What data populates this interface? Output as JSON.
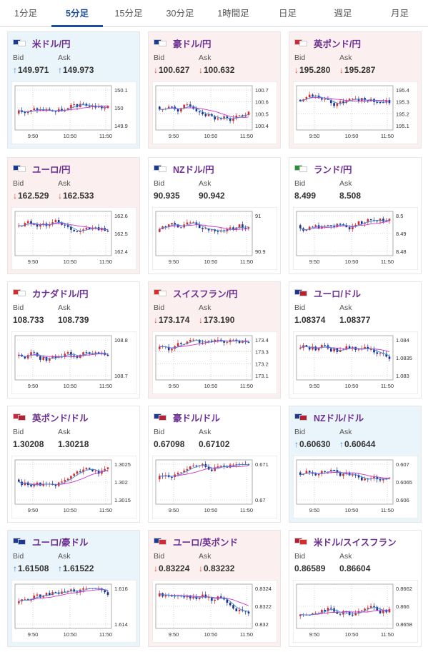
{
  "tabs": [
    {
      "label": "1分足"
    },
    {
      "label": "5分足",
      "active": true
    },
    {
      "label": "15分足"
    },
    {
      "label": "30分足"
    },
    {
      "label": "1時間足"
    },
    {
      "label": "日足"
    },
    {
      "label": "週足"
    },
    {
      "label": "月足"
    }
  ],
  "labels": {
    "bid": "Bid",
    "ask": "Ask"
  },
  "colors": {
    "up_arrow": "#2f7fd1",
    "down_arrow": "#d9463f",
    "ma": "#cc33cc",
    "ma2": "#3a8fdc",
    "bull": "#d62b2b",
    "bear": "#1b2f8f"
  },
  "x_ticks": [
    "9:50",
    "10:50",
    "11:50"
  ],
  "cards": [
    {
      "pair": "米ドル/円",
      "flags": [
        "#1a3a8f",
        "#ffffff"
      ],
      "dir": "up",
      "bid": "149.971",
      "ask": "149.973",
      "y_ticks": [
        "150.1",
        "150",
        "149.9"
      ],
      "seed": 3
    },
    {
      "pair": "豪ドル/円",
      "flags": [
        "#1a3a8f",
        "#ffffff"
      ],
      "dir": "down",
      "bid": "100.627",
      "ask": "100.632",
      "y_ticks": [
        "100.7",
        "100.6",
        "100.5",
        "100.4"
      ],
      "seed": 7
    },
    {
      "pair": "英ポンド/円",
      "flags": [
        "#cf2a3a",
        "#ffffff"
      ],
      "dir": "down",
      "bid": "195.280",
      "ask": "195.287",
      "y_ticks": [
        "195.4",
        "195.3",
        "195.2",
        "195.1"
      ],
      "seed": 11
    },
    {
      "pair": "ユーロ/円",
      "flags": [
        "#1a3a8f",
        "#ffffff"
      ],
      "dir": "down",
      "bid": "162.529",
      "ask": "162.533",
      "y_ticks": [
        "162.6",
        "162.5",
        "162.4"
      ],
      "seed": 5
    },
    {
      "pair": "NZドル/円",
      "flags": [
        "#1a3a8f",
        "#ffffff"
      ],
      "dir": "flat",
      "bid": "90.935",
      "ask": "90.942",
      "y_ticks": [
        "91",
        "90.9"
      ],
      "seed": 13
    },
    {
      "pair": "ランド/円",
      "flags": [
        "#2a8f3a",
        "#ffffff"
      ],
      "dir": "flat",
      "bid": "8.499",
      "ask": "8.508",
      "y_ticks": [
        "8.5",
        "8.49",
        "8.48"
      ],
      "seed": 17
    },
    {
      "pair": "カナダドル/円",
      "flags": [
        "#d62b2b",
        "#ffffff"
      ],
      "dir": "flat",
      "bid": "108.733",
      "ask": "108.739",
      "y_ticks": [
        "108.8",
        "108.7"
      ],
      "seed": 19
    },
    {
      "pair": "スイスフラン/円",
      "flags": [
        "#d62b2b",
        "#ffffff"
      ],
      "dir": "down",
      "bid": "173.174",
      "ask": "173.190",
      "y_ticks": [
        "173.4",
        "173.3",
        "173.2",
        "173.1"
      ],
      "seed": 23
    },
    {
      "pair": "ユーロ/ドル",
      "flags": [
        "#1a3a8f",
        "#b22234"
      ],
      "dir": "flat",
      "bid": "1.08374",
      "ask": "1.08377",
      "y_ticks": [
        "1.084",
        "1.0835",
        "1.083"
      ],
      "seed": 29
    },
    {
      "pair": "英ポンド/ドル",
      "flags": [
        "#cf2a3a",
        "#b22234"
      ],
      "dir": "flat",
      "bid": "1.30208",
      "ask": "1.30218",
      "y_ticks": [
        "1.3025",
        "1.302",
        "1.3015"
      ],
      "seed": 31
    },
    {
      "pair": "豪ドル/ドル",
      "flags": [
        "#1a3a8f",
        "#b22234"
      ],
      "dir": "flat",
      "bid": "0.67098",
      "ask": "0.67102",
      "y_ticks": [
        "0.671",
        "0.67"
      ],
      "seed": 37
    },
    {
      "pair": "NZドル/ドル",
      "flags": [
        "#1a3a8f",
        "#b22234"
      ],
      "dir": "up",
      "bid": "0.60630",
      "ask": "0.60644",
      "y_ticks": [
        "0.607",
        "0.6065",
        "0.606"
      ],
      "seed": 41
    },
    {
      "pair": "ユーロ/豪ドル",
      "flags": [
        "#1a3a8f",
        "#1a3a8f"
      ],
      "dir": "up",
      "bid": "1.61508",
      "ask": "1.61522",
      "y_ticks": [
        "1.616",
        "1.614"
      ],
      "seed": 43
    },
    {
      "pair": "ユーロ/英ポンド",
      "flags": [
        "#1a3a8f",
        "#cf2a3a"
      ],
      "dir": "down",
      "bid": "0.83224",
      "ask": "0.83232",
      "y_ticks": [
        "0.8324",
        "0.8322",
        "0.832"
      ],
      "seed": 47
    },
    {
      "pair": "米ドル/スイスフラン",
      "flags": [
        "#b22234",
        "#d62b2b"
      ],
      "dir": "flat",
      "bid": "0.86589",
      "ask": "0.86604",
      "y_ticks": [
        "0.8662",
        "0.866",
        "0.8658"
      ],
      "seed": 53
    }
  ]
}
